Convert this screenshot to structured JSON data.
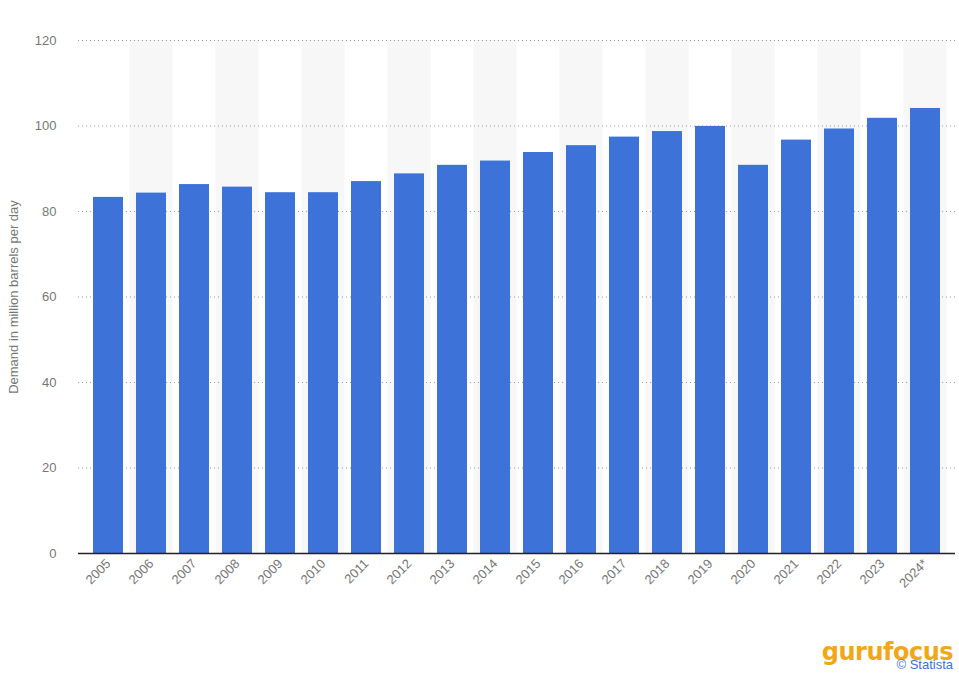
{
  "chart_data": {
    "type": "bar",
    "y_label": "Demand in million barrels per day",
    "categories": [
      "2005",
      "2006",
      "2007",
      "2008",
      "2009",
      "2010",
      "2011",
      "2012",
      "2013",
      "2014",
      "2015",
      "2016",
      "2017",
      "2018",
      "2019",
      "2020",
      "2021",
      "2022",
      "2023",
      "2024*"
    ],
    "values": [
      83.3,
      84.3,
      86.3,
      85.7,
      84.4,
      84.4,
      87.0,
      88.8,
      90.8,
      91.8,
      93.8,
      95.4,
      97.4,
      98.7,
      99.9,
      90.8,
      96.7,
      99.3,
      101.8,
      104.1
    ],
    "color": "#3d72d8",
    "ylim": [
      0,
      120
    ],
    "yticks": [
      0,
      20,
      40,
      60,
      80,
      100,
      120
    ],
    "grid": true,
    "annotations": [
      "gurufocus",
      "© Statista"
    ]
  }
}
